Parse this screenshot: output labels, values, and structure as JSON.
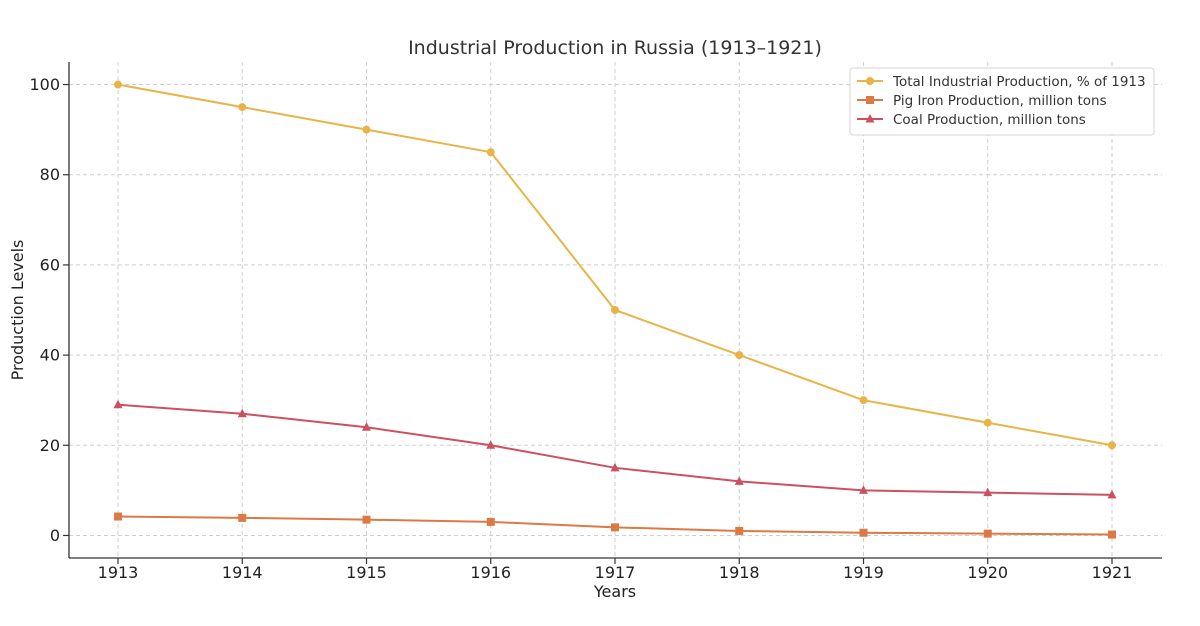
{
  "chart_data": {
    "type": "line",
    "title": "Industrial Production in Russia (1913–1921)",
    "xlabel": "Years",
    "ylabel": "Production Levels",
    "categories": [
      "1913",
      "1914",
      "1915",
      "1916",
      "1917",
      "1918",
      "1919",
      "1920",
      "1921"
    ],
    "ylim": [
      -5,
      105
    ],
    "yticks": [
      0,
      20,
      40,
      60,
      80,
      100
    ],
    "grid": true,
    "legend_position": "top-right",
    "series": [
      {
        "name": "Total Industrial Production, % of 1913",
        "color": "#e8b447",
        "marker": "circle",
        "values": [
          100,
          95,
          90,
          85,
          50,
          40,
          30,
          25,
          20
        ]
      },
      {
        "name": "Pig Iron Production, million tons",
        "color": "#db7a42",
        "marker": "square",
        "values": [
          4.2,
          3.9,
          3.5,
          3.0,
          1.8,
          1.0,
          0.6,
          0.4,
          0.2
        ]
      },
      {
        "name": "Coal Production, million tons",
        "color": "#cc5160",
        "marker": "triangle",
        "values": [
          29,
          27,
          24,
          20,
          15,
          12,
          10,
          9.5,
          9
        ]
      }
    ]
  }
}
